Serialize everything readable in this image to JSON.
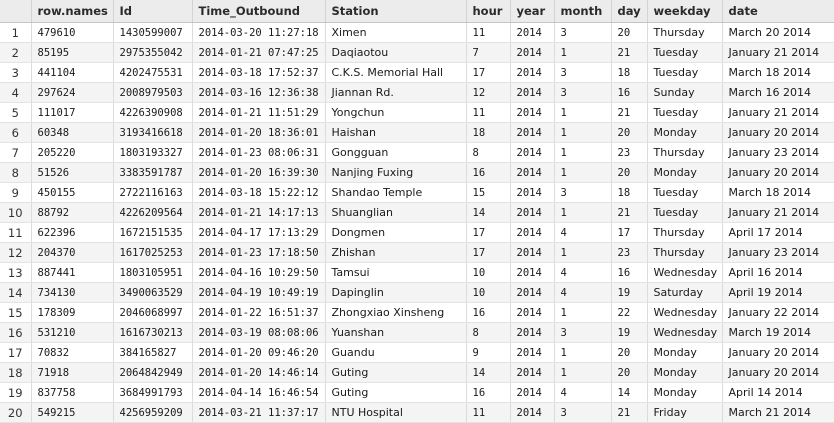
{
  "columns": [
    "",
    "row.names",
    "Id",
    "Time_Outbound",
    "Station",
    "hour",
    "year",
    "month",
    "day",
    "weekday",
    "date"
  ],
  "rows": [
    [
      "1",
      "479610",
      "1430599007",
      "2014-03-20 11:27:18",
      "Ximen",
      "11",
      "2014",
      "3",
      "20",
      "Thursday",
      "March 20 2014"
    ],
    [
      "2",
      "85195",
      "2975355042",
      "2014-01-21 07:47:25",
      "Daqiaotou",
      "7",
      "2014",
      "1",
      "21",
      "Tuesday",
      "January 21 2014"
    ],
    [
      "3",
      "441104",
      "4202475531",
      "2014-03-18 17:52:37",
      "C.K.S. Memorial Hall",
      "17",
      "2014",
      "3",
      "18",
      "Tuesday",
      "March 18 2014"
    ],
    [
      "4",
      "297624",
      "2008979503",
      "2014-03-16 12:36:38",
      "Jiannan Rd.",
      "12",
      "2014",
      "3",
      "16",
      "Sunday",
      "March 16 2014"
    ],
    [
      "5",
      "111017",
      "4226390908",
      "2014-01-21 11:51:29",
      "Yongchun",
      "11",
      "2014",
      "1",
      "21",
      "Tuesday",
      "January 21 2014"
    ],
    [
      "6",
      "60348",
      "3193416618",
      "2014-01-20 18:36:01",
      "Haishan",
      "18",
      "2014",
      "1",
      "20",
      "Monday",
      "January 20 2014"
    ],
    [
      "7",
      "205220",
      "1803193327",
      "2014-01-23 08:06:31",
      "Gongguan",
      "8",
      "2014",
      "1",
      "23",
      "Thursday",
      "January 23 2014"
    ],
    [
      "8",
      "51526",
      "3383591787",
      "2014-01-20 16:39:30",
      "Nanjing Fuxing",
      "16",
      "2014",
      "1",
      "20",
      "Monday",
      "January 20 2014"
    ],
    [
      "9",
      "450155",
      "2722116163",
      "2014-03-18 15:22:12",
      "Shandao Temple",
      "15",
      "2014",
      "3",
      "18",
      "Tuesday",
      "March 18 2014"
    ],
    [
      "10",
      "88792",
      "4226209564",
      "2014-01-21 14:17:13",
      "Shuanglian",
      "14",
      "2014",
      "1",
      "21",
      "Tuesday",
      "January 21 2014"
    ],
    [
      "11",
      "622396",
      "1672151535",
      "2014-04-17 17:13:29",
      "Dongmen",
      "17",
      "2014",
      "4",
      "17",
      "Thursday",
      "April 17 2014"
    ],
    [
      "12",
      "204370",
      "1617025253",
      "2014-01-23 17:18:50",
      "Zhishan",
      "17",
      "2014",
      "1",
      "23",
      "Thursday",
      "January 23 2014"
    ],
    [
      "13",
      "887441",
      "1803105951",
      "2014-04-16 10:29:50",
      "Tamsui",
      "10",
      "2014",
      "4",
      "16",
      "Wednesday",
      "April 16 2014"
    ],
    [
      "14",
      "734130",
      "3490063529",
      "2014-04-19 10:49:19",
      "Dapinglin",
      "10",
      "2014",
      "4",
      "19",
      "Saturday",
      "April 19 2014"
    ],
    [
      "15",
      "178309",
      "2046068997",
      "2014-01-22 16:51:37",
      "Zhongxiao Xinsheng",
      "16",
      "2014",
      "1",
      "22",
      "Wednesday",
      "January 22 2014"
    ],
    [
      "16",
      "531210",
      "1616730213",
      "2014-03-19 08:08:06",
      "Yuanshan",
      "8",
      "2014",
      "3",
      "19",
      "Wednesday",
      "March 19 2014"
    ],
    [
      "17",
      "70832",
      "384165827",
      "2014-01-20 09:46:20",
      "Guandu",
      "9",
      "2014",
      "1",
      "20",
      "Monday",
      "January 20 2014"
    ],
    [
      "18",
      "71918",
      "2064842949",
      "2014-01-20 14:46:14",
      "Guting",
      "14",
      "2014",
      "1",
      "20",
      "Monday",
      "January 20 2014"
    ],
    [
      "19",
      "837758",
      "3684991793",
      "2014-04-14 16:46:54",
      "Guting",
      "16",
      "2014",
      "4",
      "14",
      "Monday",
      "April 14 2014"
    ],
    [
      "20",
      "549215",
      "4256959209",
      "2014-03-21 11:37:17",
      "NTU Hospital",
      "11",
      "2014",
      "3",
      "21",
      "Friday",
      "March 21 2014"
    ]
  ]
}
